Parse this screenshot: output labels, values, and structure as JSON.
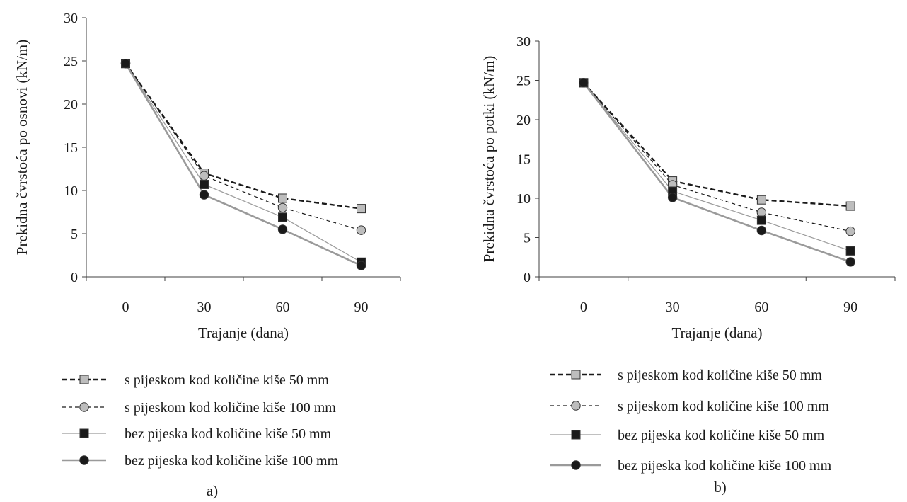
{
  "colors": {
    "axis": "#404040"
  },
  "chart_data": [
    {
      "type": "line",
      "panel_label": "a)",
      "xlabel": "Trajanje (dana)",
      "ylabel": "Prekidna čvrstoća po osnovi (kN/m)",
      "categories": [
        "0",
        "30",
        "60",
        "90"
      ],
      "yticks": [
        "0",
        "5",
        "10",
        "15",
        "20",
        "25",
        "30"
      ],
      "ylim": [
        0,
        30
      ],
      "series": [
        {
          "name": "s pijeskom kod količine kiše 50 mm",
          "values": [
            24.7,
            12.0,
            9.1,
            7.9
          ],
          "marker": "square",
          "marker_color": "#bdbdbd",
          "line_color": "#1a1a1a",
          "line_style": "heavy-dash"
        },
        {
          "name": "s pijeskom kod količine kiše 100 mm",
          "values": [
            24.7,
            11.7,
            8.0,
            5.4
          ],
          "marker": "circle",
          "marker_color": "#bdbdbd",
          "line_color": "#1a1a1a",
          "line_style": "light-dash"
        },
        {
          "name": "bez pijeska kod količine kiše 50 mm",
          "values": [
            24.7,
            10.7,
            6.9,
            1.7
          ],
          "marker": "square",
          "marker_color": "#1a1a1a",
          "line_color": "#9a9a9a",
          "line_style": "thin"
        },
        {
          "name": "bez pijeska kod količine kiše 100 mm",
          "values": [
            24.7,
            9.5,
            5.5,
            1.3
          ],
          "marker": "circle",
          "marker_color": "#1a1a1a",
          "line_color": "#9a9a9a",
          "line_style": "thick"
        }
      ]
    },
    {
      "type": "line",
      "panel_label": "b)",
      "xlabel": "Trajanje (dana)",
      "ylabel": "Prekidna čvrstoća po potki (kN/m)",
      "categories": [
        "0",
        "30",
        "60",
        "90"
      ],
      "yticks": [
        "0",
        "5",
        "10",
        "15",
        "20",
        "25",
        "30"
      ],
      "ylim": [
        0,
        30
      ],
      "series": [
        {
          "name": "s pijeskom kod količine kiše 50 mm",
          "values": [
            24.7,
            12.2,
            9.8,
            9.0
          ],
          "marker": "square",
          "marker_color": "#bdbdbd",
          "line_color": "#1a1a1a",
          "line_style": "heavy-dash"
        },
        {
          "name": "s pijeskom kod količine kiše 100 mm",
          "values": [
            24.7,
            11.7,
            8.2,
            5.8
          ],
          "marker": "circle",
          "marker_color": "#bdbdbd",
          "line_color": "#1a1a1a",
          "line_style": "light-dash"
        },
        {
          "name": "bez pijeska kod količine kiše 50 mm",
          "values": [
            24.7,
            10.9,
            7.2,
            3.3
          ],
          "marker": "square",
          "marker_color": "#1a1a1a",
          "line_color": "#9a9a9a",
          "line_style": "thin"
        },
        {
          "name": "bez pijeska kod količine kiše 100 mm",
          "values": [
            24.7,
            10.1,
            5.9,
            1.9
          ],
          "marker": "circle",
          "marker_color": "#1a1a1a",
          "line_color": "#9a9a9a",
          "line_style": "thick"
        }
      ]
    }
  ]
}
